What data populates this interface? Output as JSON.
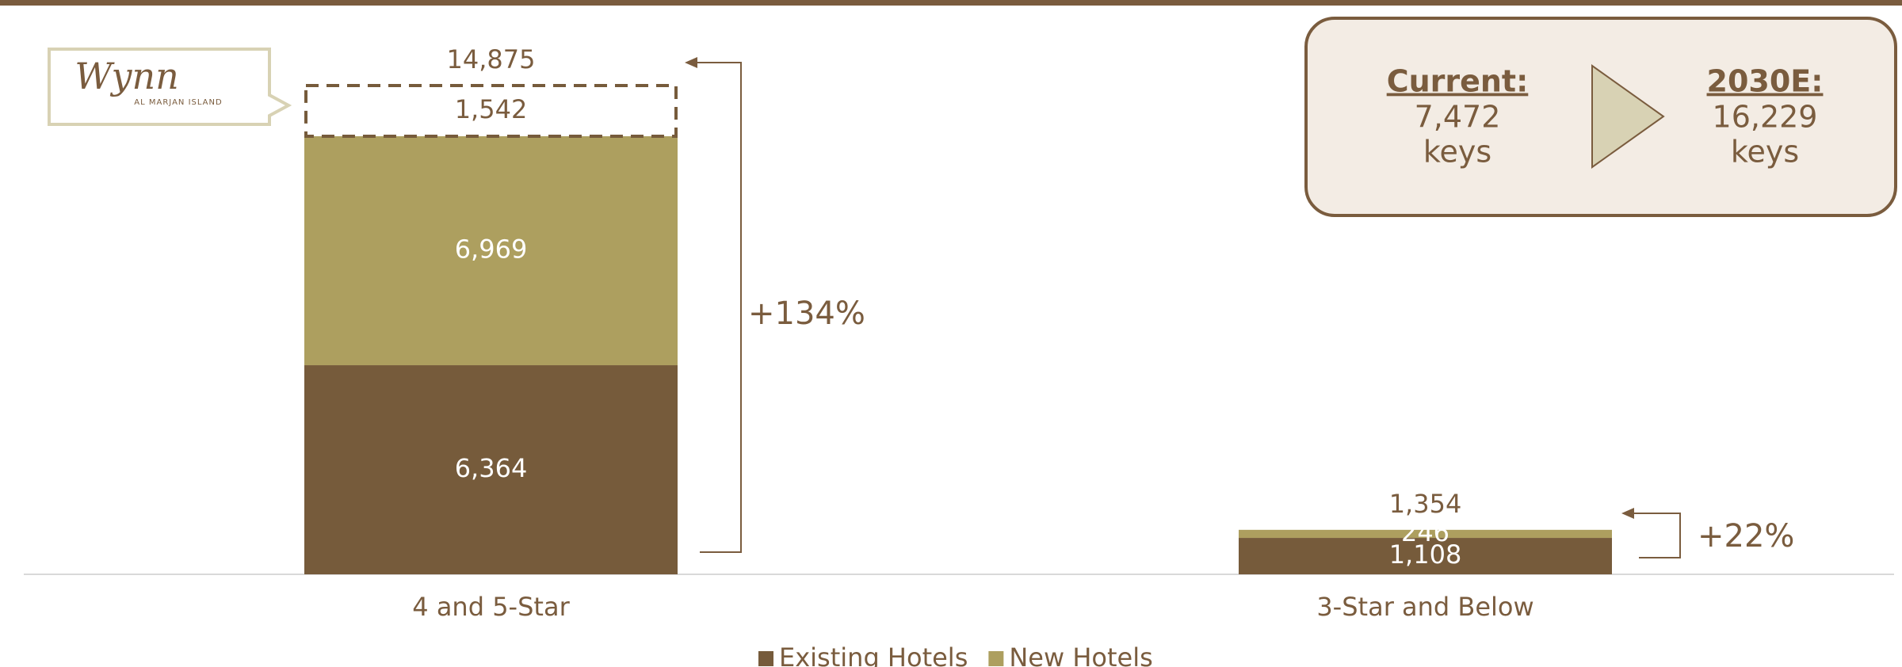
{
  "chart_data": {
    "type": "stacked_bar",
    "categories": [
      "4 and 5-Star",
      "3-Star and Below"
    ],
    "series": [
      {
        "name": "Existing Hotels",
        "color": "#765b3b",
        "values": [
          6364,
          1108
        ],
        "value_labels": [
          "6,364",
          "1,108"
        ]
      },
      {
        "name": "New Hotels",
        "color": "#ad9f5f",
        "values": [
          6969,
          246
        ],
        "value_labels": [
          "6,969",
          "246"
        ]
      },
      {
        "color": "#765b3b",
        "style": "dashed",
        "values": [
          1542,
          null
        ],
        "value_labels": [
          "1,542",
          null
        ]
      }
    ],
    "totals": {
      "values": [
        14875,
        1354
      ],
      "value_labels": [
        "14,875",
        "1,354"
      ]
    },
    "growth_labels": [
      "+134%",
      "+22%"
    ],
    "logo": {
      "title": "Wynn",
      "subtitle": "AL MARJAN ISLAND"
    },
    "callout": {
      "current_label": "Current:",
      "current_value": "7,472",
      "current_unit": "keys",
      "future_label": "2030E:",
      "future_value": "16,229",
      "future_unit": "keys"
    }
  }
}
